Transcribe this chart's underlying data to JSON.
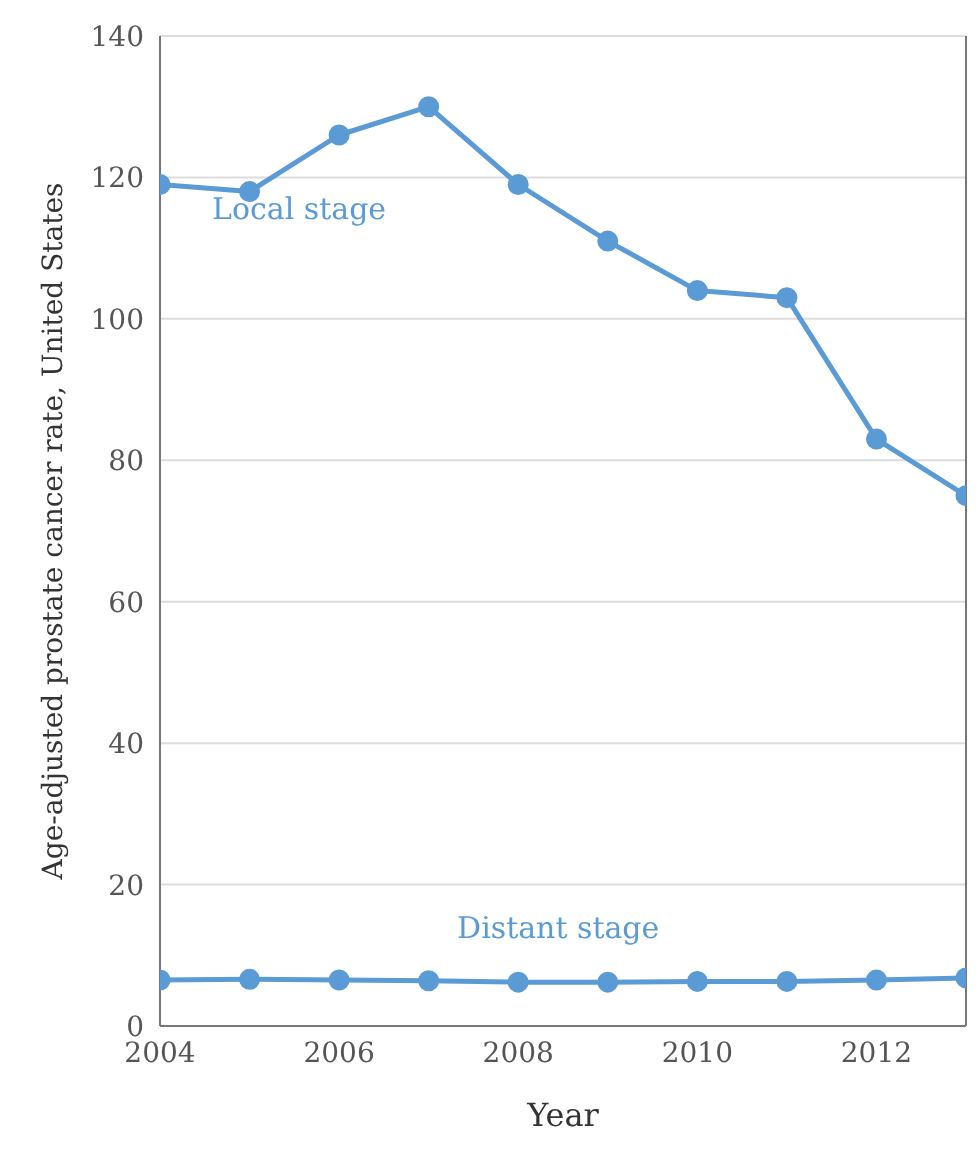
{
  "chart_data": {
    "type": "line",
    "xlabel": "Year",
    "ylabel": "Age-adjusted prostate cancer rate, United States",
    "x": [
      2004,
      2005,
      2006,
      2007,
      2008,
      2009,
      2010,
      2011,
      2012,
      2013
    ],
    "series": [
      {
        "name": "Local stage",
        "color": "#5b9bd5",
        "values": [
          119,
          118,
          126,
          130,
          119,
          111,
          104,
          103,
          83,
          75
        ]
      },
      {
        "name": "Distant stage",
        "color": "#5b9bd5",
        "values": [
          6.5,
          6.6,
          6.5,
          6.4,
          6.2,
          6.2,
          6.3,
          6.3,
          6.5,
          6.8
        ]
      }
    ],
    "xlim": [
      2004,
      2013
    ],
    "xticks": [
      2004,
      2006,
      2008,
      2010,
      2012
    ],
    "ylim": [
      0,
      140
    ],
    "yticks": [
      0,
      20,
      40,
      60,
      80,
      100,
      120,
      140
    ],
    "grid": "y",
    "marker": "circle",
    "line_style": "solid",
    "legend": false
  }
}
